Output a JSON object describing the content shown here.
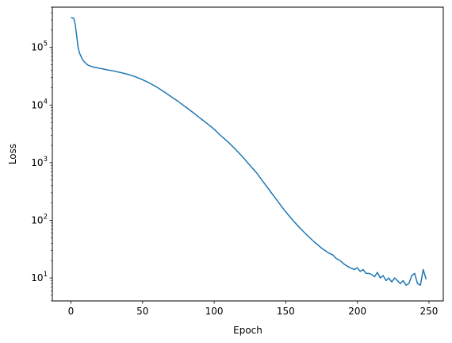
{
  "chart_data": {
    "type": "line",
    "title": "",
    "xlabel": "Epoch",
    "ylabel": "Loss",
    "xlim": [
      -13,
      260
    ],
    "ylim": [
      4,
      500000
    ],
    "yscale": "log",
    "grid": false,
    "legend": "none",
    "color": "#1f77b4",
    "xticks": [
      {
        "value": 0,
        "label": "0"
      },
      {
        "value": 50,
        "label": "50"
      },
      {
        "value": 100,
        "label": "100"
      },
      {
        "value": 150,
        "label": "150"
      },
      {
        "value": 200,
        "label": "200"
      },
      {
        "value": 250,
        "label": "250"
      }
    ],
    "yticks": [
      {
        "value": 10,
        "base": "10",
        "exp": "1"
      },
      {
        "value": 100,
        "base": "10",
        "exp": "2"
      },
      {
        "value": 1000,
        "base": "10",
        "exp": "3"
      },
      {
        "value": 10000,
        "base": "10",
        "exp": "4"
      },
      {
        "value": 100000,
        "base": "10",
        "exp": "5"
      }
    ],
    "series": [
      {
        "x": [
          0,
          2,
          3,
          4,
          5,
          6,
          7,
          8,
          10,
          12,
          15,
          20,
          25,
          30,
          35,
          40,
          45,
          50,
          55,
          60,
          65,
          70,
          75,
          80,
          85,
          90,
          95,
          100,
          105,
          110,
          115,
          120,
          125,
          130,
          135,
          140,
          145,
          150,
          155,
          160,
          165,
          170,
          175,
          180,
          183,
          185,
          188,
          190,
          193,
          195,
          198,
          200,
          202,
          204,
          206,
          208,
          210,
          212,
          214,
          216,
          218,
          220,
          222,
          224,
          226,
          228,
          230,
          232,
          234,
          236,
          238,
          240,
          242,
          244,
          246,
          248
        ],
        "y": [
          330000,
          320000,
          250000,
          160000,
          100000,
          80000,
          70000,
          62000,
          54000,
          49000,
          46000,
          43500,
          41000,
          39000,
          36500,
          34000,
          31000,
          27500,
          24000,
          20500,
          17000,
          14000,
          11500,
          9300,
          7500,
          6000,
          4800,
          3800,
          2900,
          2250,
          1700,
          1250,
          900,
          650,
          440,
          300,
          205,
          140,
          100,
          73,
          55,
          42,
          33,
          27,
          25,
          22,
          20,
          18,
          16,
          15,
          14,
          15,
          13,
          14,
          12,
          12,
          11.5,
          10.5,
          12.5,
          10,
          11,
          9,
          10,
          8.5,
          10,
          9,
          8,
          9,
          7.5,
          8,
          11,
          12,
          8,
          7.5,
          14,
          9.5
        ]
      }
    ]
  }
}
